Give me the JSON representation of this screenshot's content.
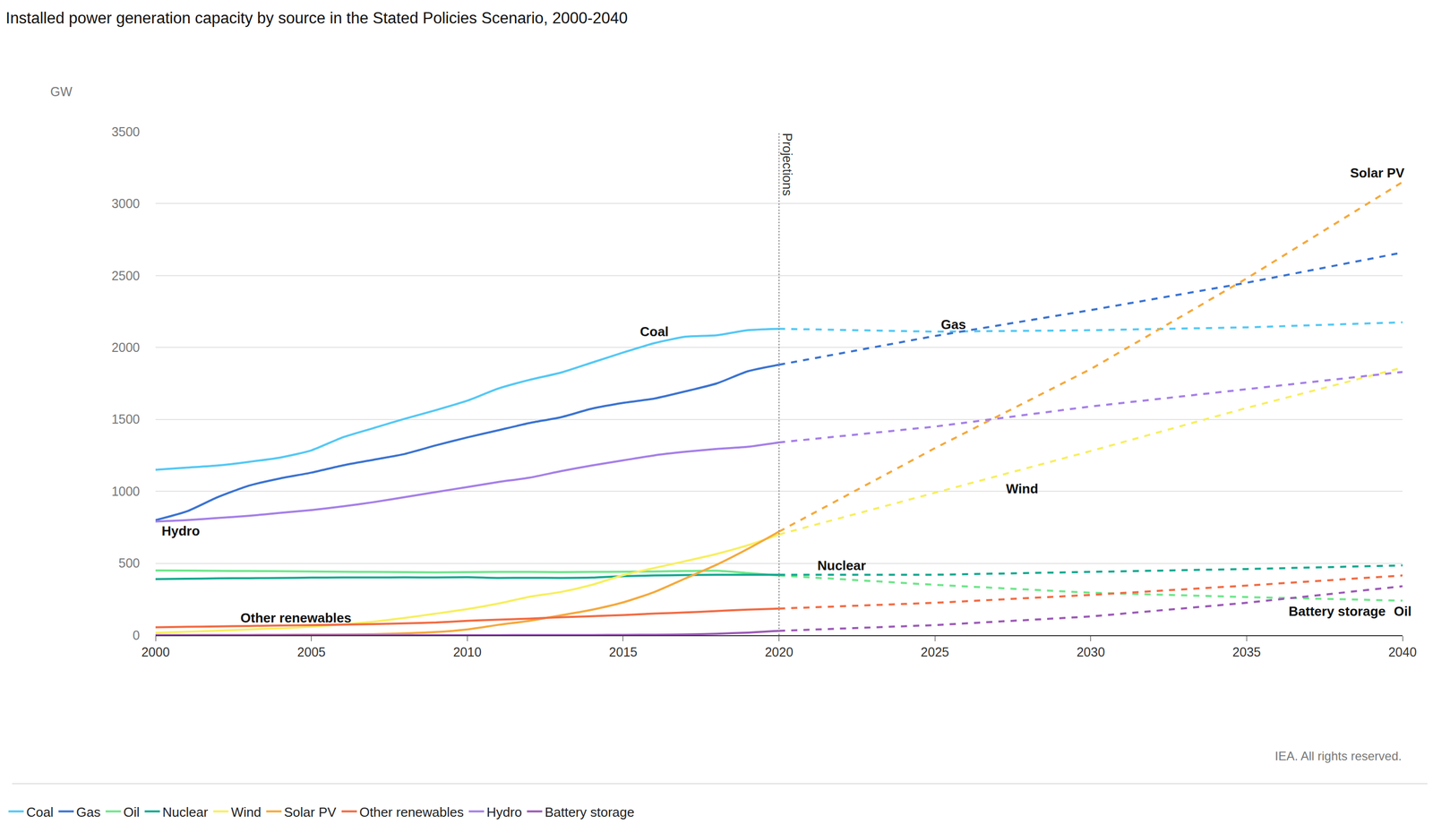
{
  "chart_data": {
    "type": "line",
    "title": "Installed power generation capacity by source in the Stated Policies Scenario, 2000-2040",
    "y_label": "GW",
    "source": "IEA. All rights reserved.",
    "x": [
      2000,
      2001,
      2002,
      2003,
      2004,
      2005,
      2006,
      2007,
      2008,
      2009,
      2010,
      2011,
      2012,
      2013,
      2014,
      2015,
      2016,
      2017,
      2018,
      2019,
      2020,
      2025,
      2030,
      2035,
      2040
    ],
    "series": [
      {
        "name": "Coal",
        "color": "#53c8f5",
        "values": [
          1150,
          1165,
          1180,
          1205,
          1235,
          1285,
          1375,
          1440,
          1505,
          1565,
          1630,
          1715,
          1775,
          1825,
          1895,
          1965,
          2030,
          2075,
          2085,
          2120,
          2130,
          2110,
          2120,
          2140,
          2175
        ]
      },
      {
        "name": "Gas",
        "color": "#3a73d1",
        "values": [
          800,
          860,
          960,
          1040,
          1090,
          1130,
          1180,
          1220,
          1260,
          1320,
          1375,
          1425,
          1475,
          1515,
          1575,
          1615,
          1645,
          1695,
          1750,
          1835,
          1880,
          2080,
          2260,
          2450,
          2660
        ]
      },
      {
        "name": "Oil",
        "color": "#6ee68a",
        "values": [
          450,
          449,
          447,
          446,
          445,
          443,
          441,
          440,
          438,
          437,
          438,
          440,
          440,
          438,
          440,
          441,
          443,
          446,
          448,
          432,
          415,
          350,
          295,
          265,
          240
        ]
      },
      {
        "name": "Nuclear",
        "color": "#12a88f",
        "values": [
          390,
          392,
          395,
          396,
          398,
          400,
          401,
          401,
          402,
          401,
          403,
          398,
          399,
          398,
          400,
          410,
          415,
          418,
          420,
          420,
          420,
          420,
          440,
          460,
          485
        ]
      },
      {
        "name": "Wind",
        "color": "#f7ef5e",
        "values": [
          17,
          24,
          31,
          40,
          48,
          59,
          74,
          94,
          120,
          150,
          181,
          220,
          267,
          300,
          350,
          417,
          467,
          515,
          565,
          625,
          700,
          990,
          1280,
          1580,
          1860
        ]
      },
      {
        "name": "Solar PV",
        "color": "#f5a93b",
        "values": [
          1,
          1,
          2,
          2,
          3,
          4,
          5,
          7,
          13,
          22,
          40,
          72,
          100,
          138,
          177,
          228,
          300,
          395,
          490,
          600,
          720,
          1300,
          1850,
          2480,
          3150
        ]
      },
      {
        "name": "Other renewables",
        "color": "#f26b43",
        "values": [
          55,
          58,
          61,
          64,
          67,
          70,
          73,
          77,
          82,
          88,
          100,
          108,
          115,
          125,
          132,
          140,
          150,
          158,
          168,
          178,
          185,
          225,
          280,
          345,
          415
        ]
      },
      {
        "name": "Hydro",
        "color": "#a57fe8",
        "values": [
          790,
          800,
          815,
          830,
          850,
          870,
          895,
          925,
          960,
          995,
          1030,
          1065,
          1095,
          1140,
          1180,
          1215,
          1250,
          1275,
          1295,
          1310,
          1340,
          1450,
          1590,
          1710,
          1830
        ]
      },
      {
        "name": "Battery storage",
        "color": "#9b59b6",
        "values": [
          0,
          0,
          0,
          0,
          0,
          0,
          0,
          0,
          0,
          0,
          0,
          0,
          1,
          1,
          1,
          2,
          3,
          5,
          10,
          18,
          30,
          70,
          130,
          225,
          340
        ]
      }
    ],
    "xlim": [
      2000,
      2040
    ],
    "xticks": [
      2000,
      2005,
      2010,
      2015,
      2020,
      2025,
      2030,
      2035,
      2040
    ],
    "ylim": [
      0,
      3500
    ],
    "yticks": [
      0,
      500,
      1000,
      1500,
      2000,
      2500,
      3000,
      3500
    ],
    "grid": true,
    "legend": "bottom",
    "annotations": [
      {
        "text": "Projections",
        "x": 2020,
        "y": 3500
      },
      {
        "text": "Coal",
        "x": 2016,
        "y": 2112
      },
      {
        "text": "Gas",
        "x": 2025.6,
        "y": 2160
      },
      {
        "text": "Hydro",
        "x": 2000.8,
        "y": 725
      },
      {
        "text": "Wind",
        "x": 2027.8,
        "y": 1018
      },
      {
        "text": "Nuclear",
        "x": 2022,
        "y": 483
      },
      {
        "text": "Other renewables",
        "x": 2004.5,
        "y": 120
      },
      {
        "text": "Solar PV",
        "x": 2039.2,
        "y": 3212
      },
      {
        "text": "Battery storage",
        "x": 2037.9,
        "y": 165
      },
      {
        "text": "Oil",
        "x": 2040,
        "y": 165
      }
    ]
  }
}
